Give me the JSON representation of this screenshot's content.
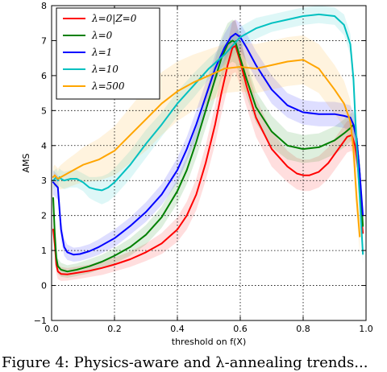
{
  "chart_data": {
    "type": "line",
    "xlabel": "threshold on f(X)",
    "ylabel": "AMS",
    "xlim": [
      0.0,
      1.0
    ],
    "ylim": [
      -1,
      8
    ],
    "xticks": [
      "0.0",
      "0.2",
      "0.4",
      "0.6",
      "0.8",
      "1.0"
    ],
    "yticks": [
      "−1",
      "0",
      "1",
      "2",
      "3",
      "4",
      "5",
      "6",
      "7",
      "8"
    ],
    "xtick_values": [
      0.0,
      0.2,
      0.4,
      0.6,
      0.8,
      1.0
    ],
    "ytick_values": [
      -1,
      0,
      1,
      2,
      3,
      4,
      5,
      6,
      7,
      8
    ],
    "grid": true,
    "legend_position": "top-left",
    "series": [
      {
        "name": "λ=0|Z=0",
        "color": "#ff0000",
        "x": [
          0.005,
          0.01,
          0.015,
          0.02,
          0.03,
          0.05,
          0.08,
          0.12,
          0.16,
          0.2,
          0.25,
          0.3,
          0.35,
          0.4,
          0.43,
          0.46,
          0.49,
          0.52,
          0.54,
          0.56,
          0.575,
          0.585,
          0.6,
          0.62,
          0.65,
          0.7,
          0.75,
          0.78,
          0.8,
          0.82,
          0.85,
          0.88,
          0.9,
          0.92,
          0.94,
          0.955,
          0.965,
          0.975,
          0.985,
          0.99
        ],
        "y": [
          1.6,
          1.2,
          0.6,
          0.4,
          0.33,
          0.32,
          0.36,
          0.42,
          0.5,
          0.6,
          0.75,
          0.95,
          1.2,
          1.6,
          2.0,
          2.6,
          3.5,
          4.6,
          5.5,
          6.3,
          6.8,
          6.85,
          6.4,
          5.7,
          4.8,
          3.9,
          3.4,
          3.2,
          3.15,
          3.15,
          3.25,
          3.5,
          3.75,
          4.0,
          4.25,
          4.3,
          4.0,
          3.3,
          2.0,
          1.5
        ],
        "band": [
          0.35,
          0.3,
          0.25,
          0.22,
          0.2,
          0.18,
          0.18,
          0.18,
          0.2,
          0.2,
          0.22,
          0.25,
          0.3,
          0.35,
          0.4,
          0.45,
          0.5,
          0.55,
          0.6,
          0.65,
          0.75,
          0.75,
          0.7,
          0.6,
          0.55,
          0.5,
          0.45,
          0.45,
          0.45,
          0.45,
          0.45,
          0.45,
          0.45,
          0.45,
          0.45,
          0.45,
          0.4,
          0.4,
          0.35,
          0.3
        ]
      },
      {
        "name": "λ=0",
        "color": "#008000",
        "x": [
          0.005,
          0.01,
          0.015,
          0.02,
          0.03,
          0.05,
          0.08,
          0.12,
          0.16,
          0.2,
          0.25,
          0.3,
          0.35,
          0.4,
          0.43,
          0.46,
          0.49,
          0.52,
          0.54,
          0.56,
          0.575,
          0.585,
          0.6,
          0.62,
          0.65,
          0.7,
          0.75,
          0.8,
          0.85,
          0.9,
          0.93,
          0.95,
          0.96,
          0.97,
          0.98,
          0.99
        ],
        "y": [
          2.5,
          1.5,
          0.8,
          0.55,
          0.45,
          0.4,
          0.45,
          0.55,
          0.68,
          0.85,
          1.1,
          1.45,
          1.95,
          2.7,
          3.3,
          4.1,
          5.0,
          5.9,
          6.5,
          6.9,
          7.0,
          6.95,
          6.5,
          5.9,
          5.1,
          4.4,
          4.0,
          3.9,
          3.95,
          4.15,
          4.35,
          4.5,
          4.6,
          4.2,
          3.2,
          1.7
        ],
        "band": [
          0.35,
          0.3,
          0.25,
          0.22,
          0.2,
          0.18,
          0.18,
          0.2,
          0.2,
          0.22,
          0.25,
          0.28,
          0.3,
          0.35,
          0.4,
          0.45,
          0.5,
          0.55,
          0.6,
          0.6,
          0.6,
          0.6,
          0.55,
          0.5,
          0.45,
          0.45,
          0.4,
          0.4,
          0.4,
          0.4,
          0.4,
          0.4,
          0.4,
          0.4,
          0.35,
          0.3
        ]
      },
      {
        "name": "λ=1",
        "color": "#0000ff",
        "x": [
          0.005,
          0.01,
          0.015,
          0.02,
          0.03,
          0.04,
          0.05,
          0.07,
          0.09,
          0.12,
          0.15,
          0.2,
          0.25,
          0.3,
          0.35,
          0.4,
          0.43,
          0.46,
          0.49,
          0.52,
          0.55,
          0.57,
          0.585,
          0.6,
          0.62,
          0.65,
          0.7,
          0.75,
          0.8,
          0.85,
          0.9,
          0.93,
          0.95,
          0.96,
          0.97,
          0.98,
          0.99
        ],
        "y": [
          2.95,
          2.9,
          2.85,
          2.8,
          1.6,
          1.1,
          0.95,
          0.88,
          0.9,
          0.98,
          1.1,
          1.35,
          1.7,
          2.1,
          2.6,
          3.3,
          3.9,
          4.6,
          5.4,
          6.2,
          6.8,
          7.1,
          7.2,
          7.1,
          6.8,
          6.3,
          5.6,
          5.15,
          4.95,
          4.9,
          4.9,
          4.85,
          4.8,
          4.6,
          4.2,
          3.2,
          2.0
        ],
        "band": [
          0.35,
          0.35,
          0.35,
          0.35,
          0.3,
          0.25,
          0.22,
          0.2,
          0.2,
          0.2,
          0.22,
          0.25,
          0.25,
          0.28,
          0.3,
          0.35,
          0.35,
          0.4,
          0.4,
          0.4,
          0.4,
          0.4,
          0.4,
          0.4,
          0.4,
          0.4,
          0.4,
          0.35,
          0.35,
          0.35,
          0.35,
          0.35,
          0.35,
          0.35,
          0.35,
          0.3,
          0.3
        ]
      },
      {
        "name": "λ=10",
        "color": "#00c0c0",
        "x": [
          0.005,
          0.01,
          0.015,
          0.02,
          0.025,
          0.03,
          0.04,
          0.06,
          0.08,
          0.1,
          0.12,
          0.14,
          0.16,
          0.18,
          0.2,
          0.25,
          0.3,
          0.35,
          0.4,
          0.45,
          0.5,
          0.55,
          0.6,
          0.65,
          0.7,
          0.75,
          0.8,
          0.85,
          0.9,
          0.93,
          0.95,
          0.96,
          0.97,
          0.98,
          0.99
        ],
        "y": [
          3.0,
          3.05,
          3.1,
          3.0,
          3.1,
          3.05,
          3.0,
          3.05,
          3.05,
          2.95,
          2.8,
          2.75,
          2.72,
          2.8,
          2.95,
          3.45,
          4.05,
          4.6,
          5.2,
          5.7,
          6.2,
          6.6,
          7.1,
          7.35,
          7.5,
          7.6,
          7.7,
          7.75,
          7.7,
          7.45,
          6.9,
          5.9,
          4.0,
          2.5,
          0.9
        ],
        "band": [
          0.25,
          0.25,
          0.25,
          0.25,
          0.25,
          0.25,
          0.25,
          0.25,
          0.25,
          0.25,
          0.3,
          0.35,
          0.4,
          0.4,
          0.4,
          0.4,
          0.4,
          0.35,
          0.35,
          0.35,
          0.3,
          0.3,
          0.3,
          0.3,
          0.25,
          0.25,
          0.25,
          0.25,
          0.25,
          0.3,
          0.3,
          0.3,
          0.35,
          0.35,
          0.3
        ]
      },
      {
        "name": "λ=500",
        "color": "#ffa500",
        "x": [
          0.005,
          0.01,
          0.015,
          0.02,
          0.03,
          0.05,
          0.08,
          0.1,
          0.15,
          0.2,
          0.25,
          0.3,
          0.35,
          0.4,
          0.45,
          0.5,
          0.55,
          0.6,
          0.65,
          0.7,
          0.75,
          0.8,
          0.85,
          0.9,
          0.93,
          0.95,
          0.96,
          0.97,
          0.98
        ],
        "y": [
          3.1,
          3.15,
          3.1,
          3.05,
          3.1,
          3.2,
          3.35,
          3.45,
          3.6,
          3.85,
          4.3,
          4.75,
          5.2,
          5.55,
          5.8,
          6.0,
          6.2,
          6.25,
          6.2,
          6.3,
          6.4,
          6.45,
          6.2,
          5.6,
          5.2,
          4.7,
          3.9,
          2.5,
          1.4
        ],
        "band": [
          0.3,
          0.3,
          0.3,
          0.3,
          0.35,
          0.4,
          0.45,
          0.5,
          0.6,
          0.7,
          0.8,
          0.9,
          0.9,
          0.85,
          0.8,
          0.75,
          0.7,
          0.7,
          0.7,
          0.7,
          0.7,
          0.7,
          0.7,
          0.7,
          0.65,
          0.6,
          0.55,
          0.5,
          0.5
        ]
      }
    ]
  },
  "caption": "Figure 4: Physics-aware and λ-annealing trends..."
}
